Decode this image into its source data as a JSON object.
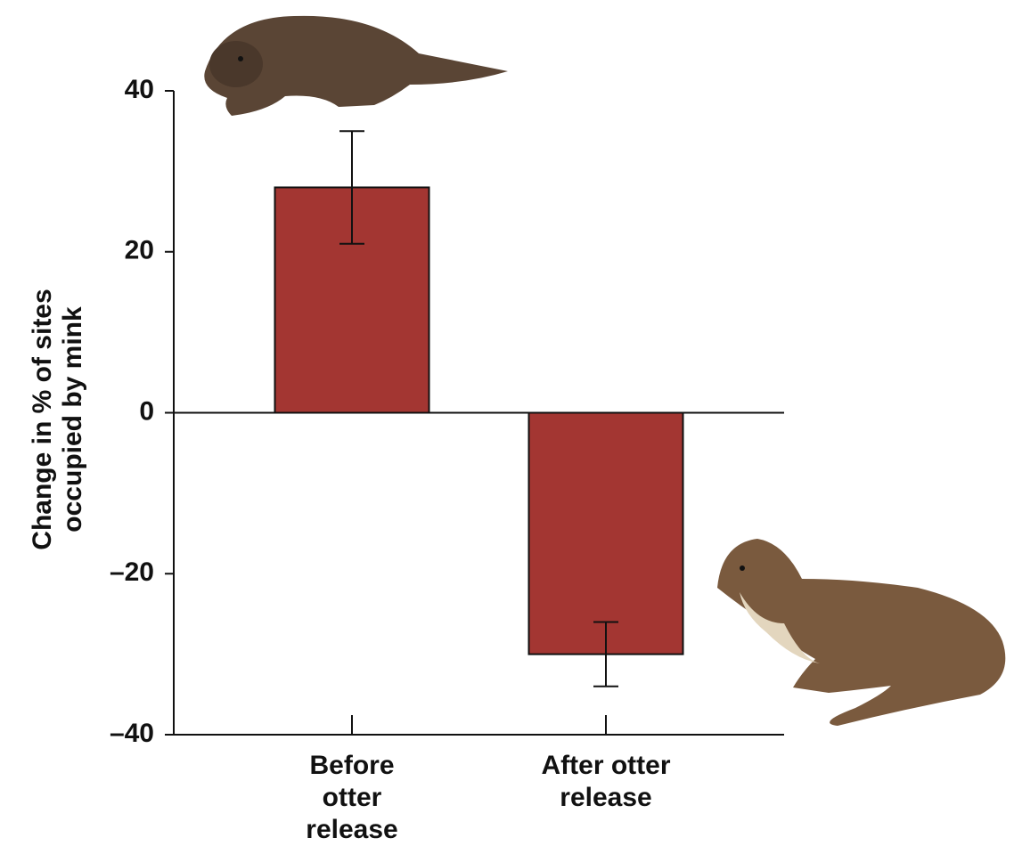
{
  "chart_data": {
    "type": "bar",
    "ylabel": "Change in % of sites occupied by mink",
    "categories": [
      "Before otter release",
      "After otter release"
    ],
    "values": [
      28,
      -30
    ],
    "errors": [
      7,
      4
    ],
    "color": "#a33632",
    "ylim": [
      -40,
      40
    ],
    "yticks": [
      {
        "value": -40,
        "label": "–40"
      },
      {
        "value": -20,
        "label": "–20"
      },
      0,
      20,
      40
    ]
  }
}
